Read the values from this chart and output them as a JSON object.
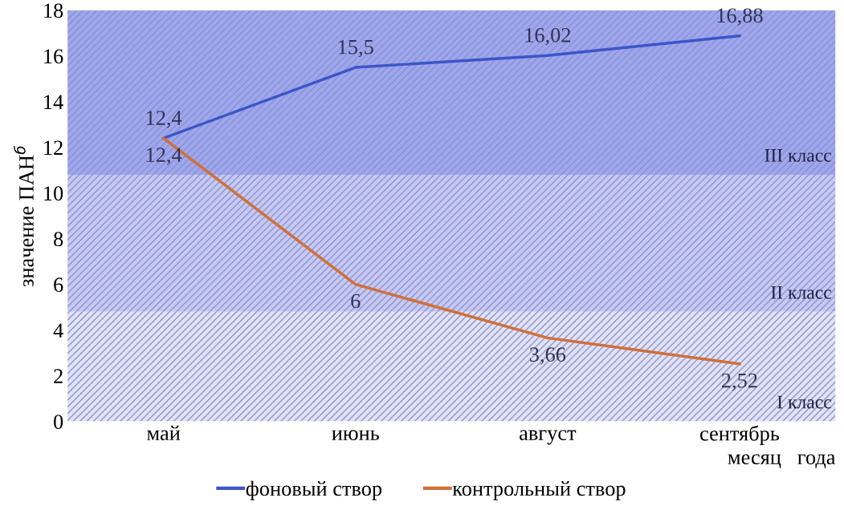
{
  "chart_data": {
    "type": "line",
    "ylabel": "значение ПАН$^{б}$",
    "xlabel": "месяц   года",
    "categories": [
      "май",
      "июнь",
      "август",
      "сентябрь"
    ],
    "series": [
      {
        "name": "фоновый створ",
        "color": "#3a56c9",
        "values": [
          12.4,
          15.5,
          16.02,
          16.88
        ],
        "value_labels": [
          "12,4",
          "15,5",
          "16,02",
          "16,88"
        ]
      },
      {
        "name": "контрольный створ",
        "color": "#d0703a",
        "values": [
          12.4,
          6,
          3.66,
          2.52
        ],
        "value_labels": [
          "12,4",
          "6",
          "3,66",
          "2,52"
        ]
      }
    ],
    "bands": [
      {
        "axis": "y",
        "from": 0,
        "to": 4.8,
        "label": "I класс",
        "color": "#e2e4f6"
      },
      {
        "axis": "y",
        "from": 4.8,
        "to": 10.8,
        "label": "II класс",
        "color": "#c6caf4"
      },
      {
        "axis": "y",
        "from": 10.8,
        "to": 18,
        "label": "III класс",
        "color": "#9fa7f0"
      }
    ],
    "ylim": [
      0,
      18
    ],
    "yticks": [
      0,
      2,
      4,
      6,
      8,
      10,
      12,
      14,
      16,
      18
    ],
    "grid": false,
    "legend": "bottom",
    "marker": "none",
    "line_style": "solid"
  }
}
